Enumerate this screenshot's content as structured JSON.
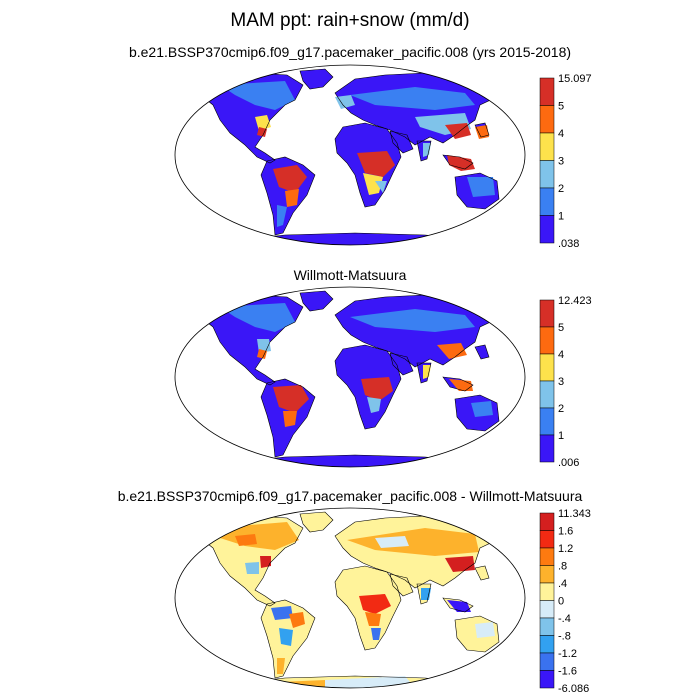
{
  "title": "MAM ppt: rain+snow (mm/d)",
  "panels": [
    {
      "id": "model",
      "title": "b.e21.BSSP370cmip6.f09_g17.pacemaker_pacific.008 (yrs 2015-2018)",
      "colorbar": {
        "labels": [
          "15.097",
          "5",
          "4",
          "3",
          "2",
          "1",
          ".038"
        ],
        "colors": [
          "#d62f27",
          "#fd6a10",
          "#fde24c",
          "#7fc3ea",
          "#3a80f2",
          "#3a16f7"
        ]
      }
    },
    {
      "id": "obs",
      "title": "Willmott-Matsuura",
      "colorbar": {
        "labels": [
          "12.423",
          "5",
          "4",
          "3",
          "2",
          "1",
          ".006"
        ],
        "colors": [
          "#d62f27",
          "#fd6a10",
          "#fde24c",
          "#7fc3ea",
          "#3a80f2",
          "#3a16f7"
        ]
      }
    },
    {
      "id": "diff",
      "title": "b.e21.BSSP370cmip6.f09_g17.pacemaker_pacific.008 - Willmott-Matsuura",
      "colorbar": {
        "labels": [
          "11.343",
          "1.6",
          "1.2",
          ".8",
          ".4",
          "0",
          "-.4",
          "-.8",
          "-1.2",
          "-1.6",
          "-6.086"
        ],
        "colors": [
          "#d41f1f",
          "#f22a13",
          "#fd7a10",
          "#fdb22c",
          "#fff39a",
          "#d7ecf8",
          "#7fc3ea",
          "#32a1f0",
          "#3a72ef",
          "#3a16f7"
        ]
      }
    }
  ]
}
